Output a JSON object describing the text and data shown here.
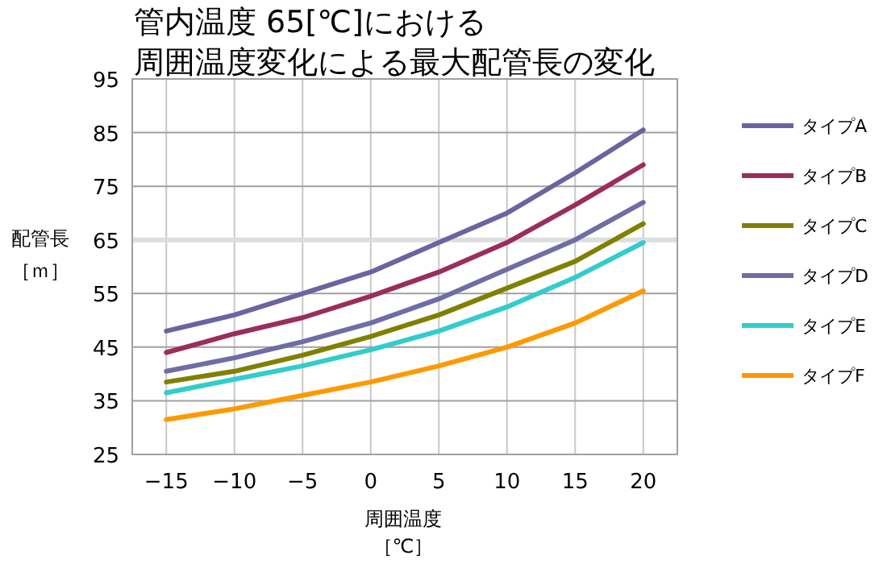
{
  "chart_data": {
    "type": "line",
    "title": "管内温度 65[℃]における",
    "subtitle": "周囲温度変化による最大配管長の変化",
    "xlabel": "周囲温度［℃］",
    "ylabel": "配管長［ｍ］",
    "x": [
      -15,
      -10,
      -5,
      0,
      5,
      10,
      15,
      20
    ],
    "xlim": [
      -17.5,
      22.5
    ],
    "xticks": [
      {
        "value": -15,
        "label": "−15"
      },
      {
        "value": -10,
        "label": "−10"
      },
      {
        "value": -5,
        "label": "−5"
      },
      0,
      5,
      10,
      15,
      20
    ],
    "ylim": [
      25,
      95
    ],
    "yticks": [
      25,
      35,
      45,
      55,
      65,
      75,
      85,
      95
    ],
    "grid": true,
    "legend": "right",
    "marker": "none",
    "line_style": "solid",
    "ref_lines": [
      {
        "axis": "y",
        "value": 65,
        "color": "#dddddd"
      }
    ],
    "series": [
      {
        "name": "タイプA",
        "color": "#6a64a0",
        "values": [
          48,
          51,
          55,
          59,
          64.5,
          70,
          77.5,
          85.5
        ]
      },
      {
        "name": "タイプB",
        "color": "#9b2d5e",
        "values": [
          44,
          47.5,
          50.5,
          54.5,
          59,
          64.5,
          71.5,
          79
        ]
      },
      {
        "name": "タイプC",
        "color": "#808000",
        "values": [
          38.5,
          40.5,
          43.5,
          47,
          51,
          56,
          61,
          68
        ]
      },
      {
        "name": "タイプD",
        "color": "#6f6ca6",
        "values": [
          40.5,
          43,
          46,
          49.5,
          54,
          59.5,
          65,
          72
        ]
      },
      {
        "name": "タイプE",
        "color": "#33cccc",
        "values": [
          36.5,
          39,
          41.5,
          44.5,
          48,
          52.5,
          58,
          64.5
        ]
      },
      {
        "name": "タイプF",
        "color": "#ff9900",
        "values": [
          31.5,
          33.5,
          36,
          38.5,
          41.5,
          45,
          49.5,
          55.5
        ]
      }
    ]
  }
}
